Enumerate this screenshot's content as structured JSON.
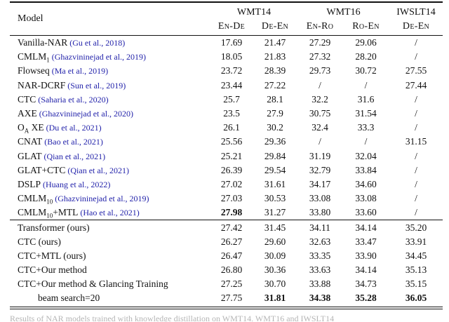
{
  "table": {
    "header": {
      "model_label": "Model",
      "groups": [
        {
          "label": "WMT14",
          "span": 2
        },
        {
          "label": "WMT16",
          "span": 2
        },
        {
          "label": "IWSLT14",
          "span": 1
        }
      ],
      "subheaders": [
        "En-De",
        "De-En",
        "En-Ro",
        "Ro-En",
        "De-En"
      ]
    },
    "sections": [
      {
        "name": "baselines",
        "rows": [
          {
            "label": [
              {
                "text": "Vanilla-NAR"
              }
            ],
            "cite": "(Gu et al., 2018)",
            "values": [
              "17.69",
              "21.47",
              "27.29",
              "29.06",
              "/"
            ],
            "bold": [
              false,
              false,
              false,
              false,
              false
            ]
          },
          {
            "label": [
              {
                "text": "CMLM"
              },
              {
                "text": "1",
                "sub": true
              }
            ],
            "cite": "(Ghazvininejad et al., 2019)",
            "values": [
              "18.05",
              "21.83",
              "27.32",
              "28.20",
              "/"
            ],
            "bold": [
              false,
              false,
              false,
              false,
              false
            ]
          },
          {
            "label": [
              {
                "text": "Flowseq"
              }
            ],
            "cite": "(Ma et al., 2019)",
            "values": [
              "23.72",
              "28.39",
              "29.73",
              "30.72",
              "27.55"
            ],
            "bold": [
              false,
              false,
              false,
              false,
              false
            ]
          },
          {
            "label": [
              {
                "text": "NAR-DCRF"
              }
            ],
            "cite": "(Sun et al., 2019)",
            "values": [
              "23.44",
              "27.22",
              "/",
              "/",
              "27.44"
            ],
            "bold": [
              false,
              false,
              false,
              false,
              false
            ]
          },
          {
            "label": [
              {
                "text": "CTC"
              }
            ],
            "cite": "(Saharia et al., 2020)",
            "values": [
              "25.7",
              "28.1",
              "32.2",
              "31.6",
              "/"
            ],
            "bold": [
              false,
              false,
              false,
              false,
              false
            ]
          },
          {
            "label": [
              {
                "text": "AXE"
              }
            ],
            "cite": "(Ghazvininejad et al., 2020)",
            "values": [
              "23.5",
              "27.9",
              "30.75",
              "31.54",
              "/"
            ],
            "bold": [
              false,
              false,
              false,
              false,
              false
            ]
          },
          {
            "label": [
              {
                "text": "O"
              },
              {
                "text": "A",
                "sub": true
              },
              {
                "text": " XE"
              }
            ],
            "cite": "(Du et al., 2021)",
            "values": [
              "26.1",
              "30.2",
              "32.4",
              "33.3",
              "/"
            ],
            "bold": [
              false,
              false,
              false,
              false,
              false
            ]
          },
          {
            "label": [
              {
                "text": "CNAT"
              }
            ],
            "cite": "(Bao et al., 2021)",
            "values": [
              "25.56",
              "29.36",
              "/",
              "/",
              "31.15"
            ],
            "bold": [
              false,
              false,
              false,
              false,
              false
            ]
          },
          {
            "label": [
              {
                "text": "GLAT"
              }
            ],
            "cite": "(Qian et al., 2021)",
            "values": [
              "25.21",
              "29.84",
              "31.19",
              "32.04",
              "/"
            ],
            "bold": [
              false,
              false,
              false,
              false,
              false
            ]
          },
          {
            "label": [
              {
                "text": "GLAT+CTC"
              }
            ],
            "cite": "(Qian et al., 2021)",
            "values": [
              "26.39",
              "29.54",
              "32.79",
              "33.84",
              "/"
            ],
            "bold": [
              false,
              false,
              false,
              false,
              false
            ]
          },
          {
            "label": [
              {
                "text": "DSLP"
              }
            ],
            "cite": "(Huang et al., 2022)",
            "values": [
              "27.02",
              "31.61",
              "34.17",
              "34.60",
              "/"
            ],
            "bold": [
              false,
              false,
              false,
              false,
              false
            ]
          },
          {
            "label": [
              {
                "text": "CMLM"
              },
              {
                "text": "10",
                "sub": true
              }
            ],
            "cite": "(Ghazvininejad et al., 2019)",
            "values": [
              "27.03",
              "30.53",
              "33.08",
              "33.08",
              "/"
            ],
            "bold": [
              false,
              false,
              false,
              false,
              false
            ]
          },
          {
            "label": [
              {
                "text": "CMLM"
              },
              {
                "text": "10",
                "sub": true
              },
              {
                "text": "+MTL"
              }
            ],
            "cite": "(Hao et al., 2021)",
            "values": [
              "27.98",
              "31.27",
              "33.80",
              "33.60",
              "/"
            ],
            "bold": [
              true,
              false,
              false,
              false,
              false
            ]
          }
        ]
      },
      {
        "name": "ours",
        "rows": [
          {
            "label": [
              {
                "text": "Transformer (ours)"
              }
            ],
            "cite": "",
            "values": [
              "27.42",
              "31.45",
              "34.11",
              "34.14",
              "35.20"
            ],
            "bold": [
              false,
              false,
              false,
              false,
              false
            ]
          },
          {
            "label": [
              {
                "text": "CTC (ours)"
              }
            ],
            "cite": "",
            "values": [
              "26.27",
              "29.60",
              "32.63",
              "33.47",
              "33.91"
            ],
            "bold": [
              false,
              false,
              false,
              false,
              false
            ]
          },
          {
            "label": [
              {
                "text": "CTC+MTL (ours)"
              }
            ],
            "cite": "",
            "values": [
              "26.47",
              "30.09",
              "33.35",
              "33.90",
              "34.45"
            ],
            "bold": [
              false,
              false,
              false,
              false,
              false
            ]
          },
          {
            "label": [
              {
                "text": "CTC+Our method"
              }
            ],
            "cite": "",
            "values": [
              "26.80",
              "30.36",
              "33.63",
              "34.14",
              "35.13"
            ],
            "bold": [
              false,
              false,
              false,
              false,
              false
            ]
          },
          {
            "label": [
              {
                "text": "CTC+Our method & Glancing Training"
              }
            ],
            "cite": "",
            "values": [
              "27.25",
              "30.70",
              "33.88",
              "34.73",
              "35.15"
            ],
            "bold": [
              false,
              false,
              false,
              false,
              false
            ]
          },
          {
            "label": [
              {
                "text": "beam search=20"
              }
            ],
            "cite": "",
            "indent": true,
            "values": [
              "27.75",
              "31.81",
              "34.38",
              "35.28",
              "36.05"
            ],
            "bold": [
              false,
              true,
              true,
              true,
              true
            ]
          }
        ]
      }
    ],
    "caption": "Results of NAR models trained with knowledge distillation on WMT14, WMT16 and IWSLT14"
  }
}
